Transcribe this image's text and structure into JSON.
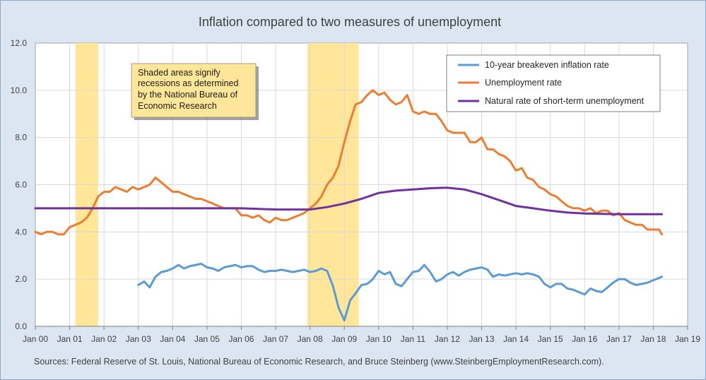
{
  "chart_data": {
    "type": "line",
    "title": "Inflation compared to two measures of unemployment",
    "xlabel": "",
    "ylabel": "",
    "x_range": [
      2000.0,
      2019.0
    ],
    "ylim": [
      0,
      12
    ],
    "y_ticks": [
      0,
      2,
      4,
      6,
      8,
      10,
      12
    ],
    "y_tick_labels": [
      "0.0",
      "2.0",
      "4.0",
      "6.0",
      "8.0",
      "10.0",
      "12.0"
    ],
    "x_ticks": [
      2000,
      2001,
      2002,
      2003,
      2004,
      2005,
      2006,
      2007,
      2008,
      2009,
      2010,
      2011,
      2012,
      2013,
      2014,
      2015,
      2016,
      2017,
      2018,
      2019
    ],
    "x_tick_labels": [
      "Jan 00",
      "Jan 01",
      "Jan 02",
      "Jan 03",
      "Jan 04",
      "Jan 05",
      "Jan 06",
      "Jan 07",
      "Jan 08",
      "Jan 09",
      "Jan 10",
      "Jan 11",
      "Jan 12",
      "Jan 13",
      "Jan 14",
      "Jan 15",
      "Jan 16",
      "Jan 17",
      "Jan 18",
      "Jan 19"
    ],
    "grid": true,
    "legend_position": "top-right",
    "recessions": [
      [
        2001.17,
        2001.83
      ],
      [
        2007.92,
        2009.42
      ]
    ],
    "recession_color": "#ffe699",
    "annotation": [
      "Shaded areas signify",
      "recessions as determined",
      "by the National Bureau of",
      "Economic Research"
    ],
    "source": "Sources: Federal Reserve of St. Louis, National Bureau of Economic Research, and Bruce Steinberg (www.SteinbergEmploymentResearch.com).",
    "series": [
      {
        "name": "10-year breakeven inflation rate",
        "color": "#5b9bd5",
        "x": [
          2003.0,
          2003.17,
          2003.33,
          2003.5,
          2003.67,
          2003.83,
          2004.0,
          2004.17,
          2004.33,
          2004.5,
          2004.67,
          2004.83,
          2005.0,
          2005.17,
          2005.33,
          2005.5,
          2005.67,
          2005.83,
          2006.0,
          2006.17,
          2006.33,
          2006.5,
          2006.67,
          2006.83,
          2007.0,
          2007.17,
          2007.33,
          2007.5,
          2007.67,
          2007.83,
          2008.0,
          2008.17,
          2008.33,
          2008.5,
          2008.67,
          2008.83,
          2009.0,
          2009.17,
          2009.33,
          2009.5,
          2009.67,
          2009.83,
          2010.0,
          2010.17,
          2010.33,
          2010.5,
          2010.67,
          2010.83,
          2011.0,
          2011.17,
          2011.33,
          2011.5,
          2011.67,
          2011.83,
          2012.0,
          2012.17,
          2012.33,
          2012.5,
          2012.67,
          2012.83,
          2013.0,
          2013.17,
          2013.33,
          2013.5,
          2013.67,
          2013.83,
          2014.0,
          2014.17,
          2014.33,
          2014.5,
          2014.67,
          2014.83,
          2015.0,
          2015.17,
          2015.33,
          2015.5,
          2015.67,
          2015.83,
          2016.0,
          2016.17,
          2016.33,
          2016.5,
          2016.67,
          2016.83,
          2017.0,
          2017.17,
          2017.33,
          2017.5,
          2017.67,
          2017.83,
          2018.0,
          2018.17,
          2018.25
        ],
        "y": [
          1.75,
          1.9,
          1.65,
          2.1,
          2.3,
          2.35,
          2.45,
          2.6,
          2.45,
          2.55,
          2.6,
          2.65,
          2.5,
          2.45,
          2.35,
          2.5,
          2.55,
          2.6,
          2.5,
          2.55,
          2.55,
          2.4,
          2.3,
          2.35,
          2.35,
          2.4,
          2.35,
          2.3,
          2.35,
          2.4,
          2.3,
          2.35,
          2.45,
          2.35,
          1.7,
          0.8,
          0.25,
          1.1,
          1.4,
          1.75,
          1.8,
          2.0,
          2.35,
          2.2,
          2.3,
          1.8,
          1.7,
          2.0,
          2.3,
          2.35,
          2.6,
          2.3,
          1.9,
          2.0,
          2.2,
          2.3,
          2.15,
          2.3,
          2.4,
          2.45,
          2.5,
          2.4,
          2.1,
          2.2,
          2.15,
          2.2,
          2.25,
          2.2,
          2.25,
          2.2,
          2.1,
          1.8,
          1.65,
          1.8,
          1.8,
          1.6,
          1.55,
          1.45,
          1.35,
          1.6,
          1.5,
          1.45,
          1.65,
          1.85,
          2.0,
          2.0,
          1.85,
          1.75,
          1.8,
          1.85,
          1.95,
          2.05,
          2.1
        ]
      },
      {
        "name": "Unemployment rate",
        "color": "#ed7d31",
        "x": [
          2000.0,
          2000.17,
          2000.33,
          2000.5,
          2000.67,
          2000.83,
          2001.0,
          2001.17,
          2001.33,
          2001.5,
          2001.67,
          2001.83,
          2002.0,
          2002.17,
          2002.33,
          2002.5,
          2002.67,
          2002.83,
          2003.0,
          2003.17,
          2003.33,
          2003.5,
          2003.67,
          2003.83,
          2004.0,
          2004.17,
          2004.33,
          2004.5,
          2004.67,
          2004.83,
          2005.0,
          2005.17,
          2005.33,
          2005.5,
          2005.67,
          2005.83,
          2006.0,
          2006.17,
          2006.33,
          2006.5,
          2006.67,
          2006.83,
          2007.0,
          2007.17,
          2007.33,
          2007.5,
          2007.67,
          2007.83,
          2008.0,
          2008.17,
          2008.33,
          2008.5,
          2008.67,
          2008.83,
          2009.0,
          2009.17,
          2009.33,
          2009.5,
          2009.67,
          2009.83,
          2010.0,
          2010.17,
          2010.33,
          2010.5,
          2010.67,
          2010.83,
          2011.0,
          2011.17,
          2011.33,
          2011.5,
          2011.67,
          2011.83,
          2012.0,
          2012.17,
          2012.33,
          2012.5,
          2012.67,
          2012.83,
          2013.0,
          2013.17,
          2013.33,
          2013.5,
          2013.67,
          2013.83,
          2014.0,
          2014.17,
          2014.33,
          2014.5,
          2014.67,
          2014.83,
          2015.0,
          2015.17,
          2015.33,
          2015.5,
          2015.67,
          2015.83,
          2016.0,
          2016.17,
          2016.33,
          2016.5,
          2016.67,
          2016.83,
          2017.0,
          2017.17,
          2017.33,
          2017.5,
          2017.67,
          2017.83,
          2018.0,
          2018.17,
          2018.25
        ],
        "y": [
          4.0,
          3.9,
          4.0,
          4.0,
          3.9,
          3.9,
          4.2,
          4.3,
          4.4,
          4.6,
          5.0,
          5.5,
          5.7,
          5.7,
          5.9,
          5.8,
          5.7,
          5.9,
          5.8,
          5.9,
          6.0,
          6.3,
          6.1,
          5.9,
          5.7,
          5.7,
          5.6,
          5.5,
          5.4,
          5.4,
          5.3,
          5.2,
          5.1,
          5.0,
          5.0,
          5.0,
          4.7,
          4.7,
          4.6,
          4.7,
          4.5,
          4.4,
          4.6,
          4.5,
          4.5,
          4.6,
          4.7,
          4.8,
          5.0,
          5.2,
          5.5,
          6.0,
          6.3,
          6.8,
          7.8,
          8.7,
          9.4,
          9.5,
          9.8,
          10.0,
          9.8,
          9.9,
          9.6,
          9.4,
          9.5,
          9.8,
          9.1,
          9.0,
          9.1,
          9.0,
          9.0,
          8.7,
          8.3,
          8.2,
          8.2,
          8.2,
          7.8,
          7.8,
          8.0,
          7.5,
          7.5,
          7.3,
          7.2,
          7.0,
          6.6,
          6.7,
          6.3,
          6.2,
          5.9,
          5.8,
          5.6,
          5.5,
          5.3,
          5.1,
          5.0,
          5.0,
          4.9,
          5.0,
          4.8,
          4.9,
          4.9,
          4.7,
          4.8,
          4.5,
          4.4,
          4.3,
          4.3,
          4.1,
          4.1,
          4.1,
          3.9
        ]
      },
      {
        "name": "Natural rate of short-term unemployment",
        "color": "#7030a0",
        "x": [
          2000.0,
          2001.0,
          2002.0,
          2003.0,
          2004.0,
          2005.0,
          2006.0,
          2007.0,
          2008.0,
          2008.5,
          2009.0,
          2009.5,
          2010.0,
          2010.5,
          2011.0,
          2011.5,
          2012.0,
          2012.5,
          2013.0,
          2013.5,
          2014.0,
          2014.5,
          2015.0,
          2015.5,
          2016.0,
          2017.0,
          2018.0,
          2018.25
        ],
        "y": [
          5.0,
          5.0,
          5.0,
          5.0,
          5.0,
          5.0,
          5.0,
          4.95,
          4.95,
          5.05,
          5.2,
          5.4,
          5.65,
          5.75,
          5.8,
          5.85,
          5.87,
          5.8,
          5.6,
          5.35,
          5.1,
          5.0,
          4.9,
          4.82,
          4.78,
          4.75,
          4.75,
          4.75
        ]
      }
    ]
  }
}
